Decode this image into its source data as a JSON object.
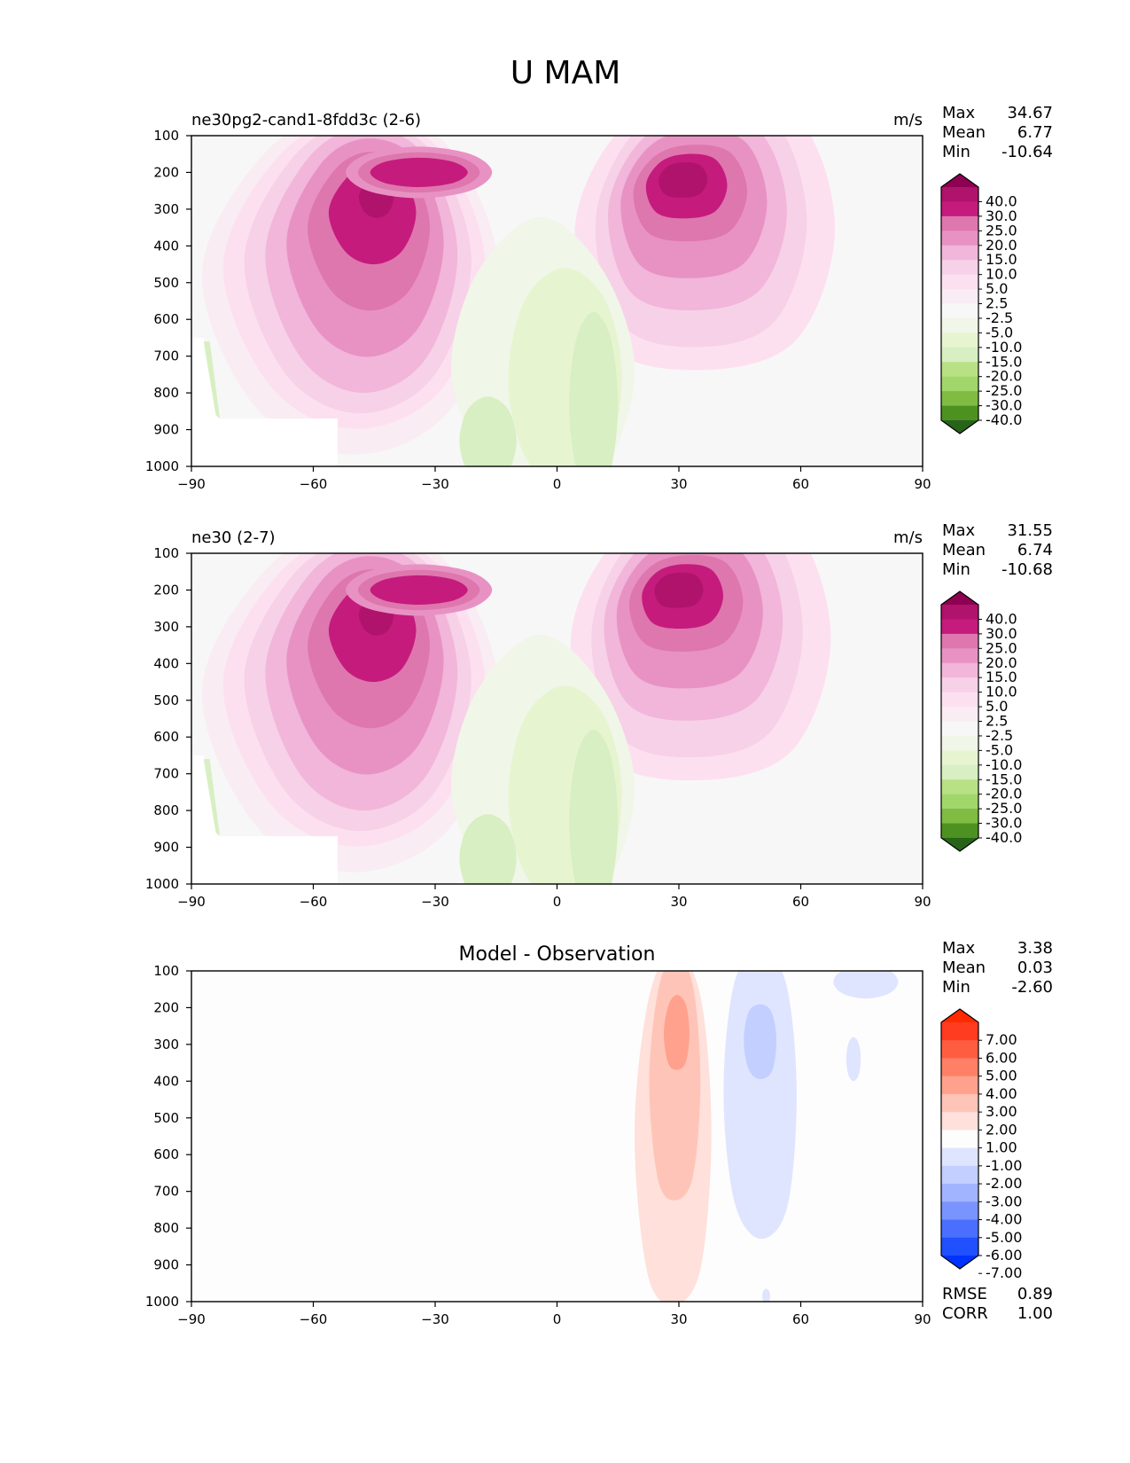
{
  "title": "U MAM",
  "colors": {
    "model_levels": [
      "#276419",
      "#4d9221",
      "#7fbc41",
      "#a1d76a",
      "#b8e186",
      "#d7efc2",
      "#e6f5d0",
      "#f0f6e8",
      "#f7f7f7",
      "#f9ecf3",
      "#fde0ef",
      "#f7d1e7",
      "#f1b6da",
      "#e892c4",
      "#de77ae",
      "#c51b7d",
      "#b0136b",
      "#8e0152"
    ],
    "diff_levels": [
      "#0033ff",
      "#2050ff",
      "#4a6fff",
      "#7a94ff",
      "#a1b4ff",
      "#c2cfff",
      "#dfe5ff",
      "#fdfdfd",
      "#ffe0da",
      "#ffc4b8",
      "#ffa18d",
      "#ff8066",
      "#ff5d40",
      "#ff3c1f",
      "#ff2a00"
    ]
  },
  "chart_data": [
    {
      "type": "contour",
      "name": "test",
      "title": "ne30pg2-cand1-8fdd3c (2-6)",
      "units": "m/s",
      "stats": {
        "max_label": "Max",
        "max": "34.67",
        "mean_label": "Mean",
        "mean": "6.77",
        "min_label": "Min",
        "min": "-10.64"
      },
      "x": {
        "ticks": [
          -90,
          -60,
          -30,
          0,
          30,
          60,
          90
        ],
        "tick_labels": [
          "−90",
          "−60",
          "−30",
          "0",
          "30",
          "60",
          "90"
        ],
        "range": [
          -90,
          90
        ]
      },
      "y": {
        "ticks": [
          100,
          200,
          300,
          400,
          500,
          600,
          700,
          800,
          900,
          1000
        ],
        "tick_labels": [
          "100",
          "200",
          "300",
          "400",
          "500",
          "600",
          "700",
          "800",
          "900",
          "1000"
        ],
        "range": [
          1000,
          100
        ],
        "inverted": true
      },
      "colorbar": {
        "levels": [
          "40.0",
          "30.0",
          "25.0",
          "20.0",
          "15.0",
          "10.0",
          "5.0",
          "2.5",
          "-2.5",
          "-5.0",
          "-10.0",
          "-15.0",
          "-20.0",
          "-25.0",
          "-30.0",
          "-40.0"
        ]
      },
      "features": [
        {
          "name": "sh-jet-core",
          "lat": -52,
          "p": 240,
          "peak": 32
        },
        {
          "name": "nh-jet-core",
          "lat": 28,
          "p": 200,
          "peak": 34.67
        },
        {
          "name": "tropical-easterlies",
          "lat": 6,
          "p": 700,
          "peak": -10.64
        }
      ]
    },
    {
      "type": "contour",
      "name": "reference",
      "title": "ne30 (2-7)",
      "units": "m/s",
      "stats": {
        "max_label": "Max",
        "max": "31.55",
        "mean_label": "Mean",
        "mean": "6.74",
        "min_label": "Min",
        "min": "-10.68"
      },
      "x": {
        "ticks": [
          -90,
          -60,
          -30,
          0,
          30,
          60,
          90
        ],
        "tick_labels": [
          "−90",
          "−60",
          "−30",
          "0",
          "30",
          "60",
          "90"
        ],
        "range": [
          -90,
          90
        ]
      },
      "y": {
        "ticks": [
          100,
          200,
          300,
          400,
          500,
          600,
          700,
          800,
          900,
          1000
        ],
        "tick_labels": [
          "100",
          "200",
          "300",
          "400",
          "500",
          "600",
          "700",
          "800",
          "900",
          "1000"
        ],
        "range": [
          1000,
          100
        ],
        "inverted": true
      },
      "colorbar": {
        "levels": [
          "40.0",
          "30.0",
          "25.0",
          "20.0",
          "15.0",
          "10.0",
          "5.0",
          "2.5",
          "-2.5",
          "-5.0",
          "-10.0",
          "-15.0",
          "-20.0",
          "-25.0",
          "-30.0",
          "-40.0"
        ]
      },
      "features": [
        {
          "name": "sh-jet-core",
          "lat": -52,
          "p": 240,
          "peak": 31.55
        },
        {
          "name": "nh-jet-core",
          "lat": 27,
          "p": 180,
          "peak": 30
        },
        {
          "name": "tropical-easterlies",
          "lat": 6,
          "p": 700,
          "peak": -10.68
        }
      ]
    },
    {
      "type": "contour",
      "name": "difference",
      "title": "Model - Observation",
      "units": "",
      "stats": {
        "max_label": "Max",
        "max": "3.38",
        "mean_label": "Mean",
        "mean": "0.03",
        "min_label": "Min",
        "min": "-2.60"
      },
      "metrics": {
        "rmse_label": "RMSE",
        "rmse": "0.89",
        "corr_label": "CORR",
        "corr": "1.00"
      },
      "x": {
        "ticks": [
          -90,
          -60,
          -30,
          0,
          30,
          60,
          90
        ],
        "tick_labels": [
          "−90",
          "−60",
          "−30",
          "0",
          "30",
          "60",
          "90"
        ],
        "range": [
          -90,
          90
        ]
      },
      "y": {
        "ticks": [
          100,
          200,
          300,
          400,
          500,
          600,
          700,
          800,
          900,
          1000
        ],
        "tick_labels": [
          "100",
          "200",
          "300",
          "400",
          "500",
          "600",
          "700",
          "800",
          "900",
          "1000"
        ],
        "range": [
          1000,
          100
        ],
        "inverted": true
      },
      "colorbar": {
        "levels": [
          "7.00",
          "6.00",
          "5.00",
          "4.00",
          "3.00",
          "2.00",
          "1.00",
          "-1.00",
          "-2.00",
          "-3.00",
          "-4.00",
          "-5.00",
          "-6.00",
          "-7.00"
        ]
      },
      "features": [
        {
          "name": "positive-anomaly",
          "lat": 30,
          "p": 260,
          "peak": 3.38
        },
        {
          "name": "negative-anomaly",
          "lat": 49,
          "p": 280,
          "peak": -2.6
        }
      ]
    }
  ]
}
